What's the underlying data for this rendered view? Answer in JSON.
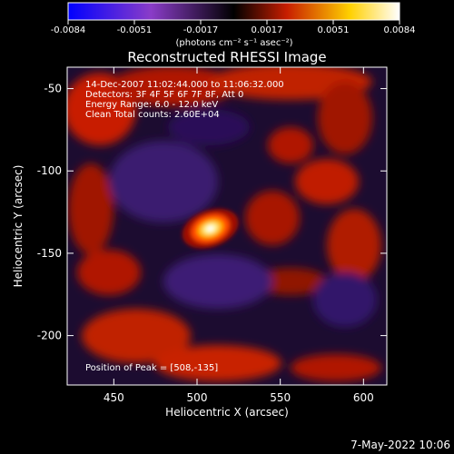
{
  "chart_data": {
    "type": "heatmap",
    "title": "Reconstructed RHESSI Image",
    "xlabel": "Heliocentric X (arcsec)",
    "ylabel": "Heliocentric Y (arcsec)",
    "xlim": [
      422,
      614
    ],
    "ylim": [
      -230,
      -37
    ],
    "x_ticks": [
      450,
      500,
      550,
      600
    ],
    "y_ticks": [
      -50,
      -100,
      -150,
      -200
    ],
    "colorbar": {
      "ticks": [
        "-0.0084",
        "-0.0051",
        "-0.0017",
        "0.0017",
        "0.0051",
        "0.0084"
      ],
      "unit_label": "(photons cm⁻² s⁻¹ asec⁻²)",
      "range": [
        -0.0084,
        0.0084
      ],
      "colors": [
        "#0000ff",
        "#8a3cc8",
        "#000000",
        "#c81e00",
        "#ffd000",
        "#ffffff"
      ]
    },
    "info_lines": [
      "14-Dec-2007 11:02:44.000 to 11:06:32.000",
      "Detectors: 3F 4F 5F 6F 7F 8F, Att 0",
      "Energy Range: 6.0 - 12.0 keV",
      "Clean     Total counts: 2.60E+04"
    ],
    "peak_label": "Position of Peak = [508,-135]",
    "peak": {
      "x": 508,
      "y": -135,
      "value": 0.0084
    },
    "grid": false
  },
  "footer": {
    "timestamp": "7-May-2022 10:06"
  }
}
